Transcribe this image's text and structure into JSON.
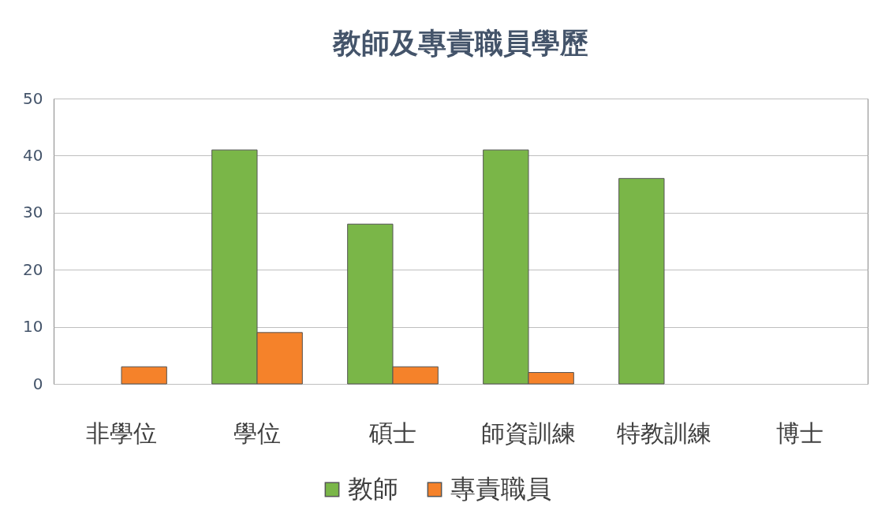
{
  "chart_data": {
    "type": "bar",
    "title": "教師及專責職員學歷",
    "categories": [
      "非學位",
      "學位",
      "碩士",
      "師資訓練",
      "特教訓練",
      "博士"
    ],
    "series": [
      {
        "name": "教師",
        "color": "#7ab648",
        "values": [
          null,
          41,
          28,
          41,
          36,
          null
        ]
      },
      {
        "name": "專責職員",
        "color": "#f5822a",
        "values": [
          3,
          9,
          3,
          2,
          null,
          null
        ]
      }
    ],
    "ylim": [
      0,
      50
    ],
    "yticks": [
      0,
      10,
      20,
      30,
      40,
      50
    ],
    "grid": "y",
    "legend": "bottom"
  }
}
